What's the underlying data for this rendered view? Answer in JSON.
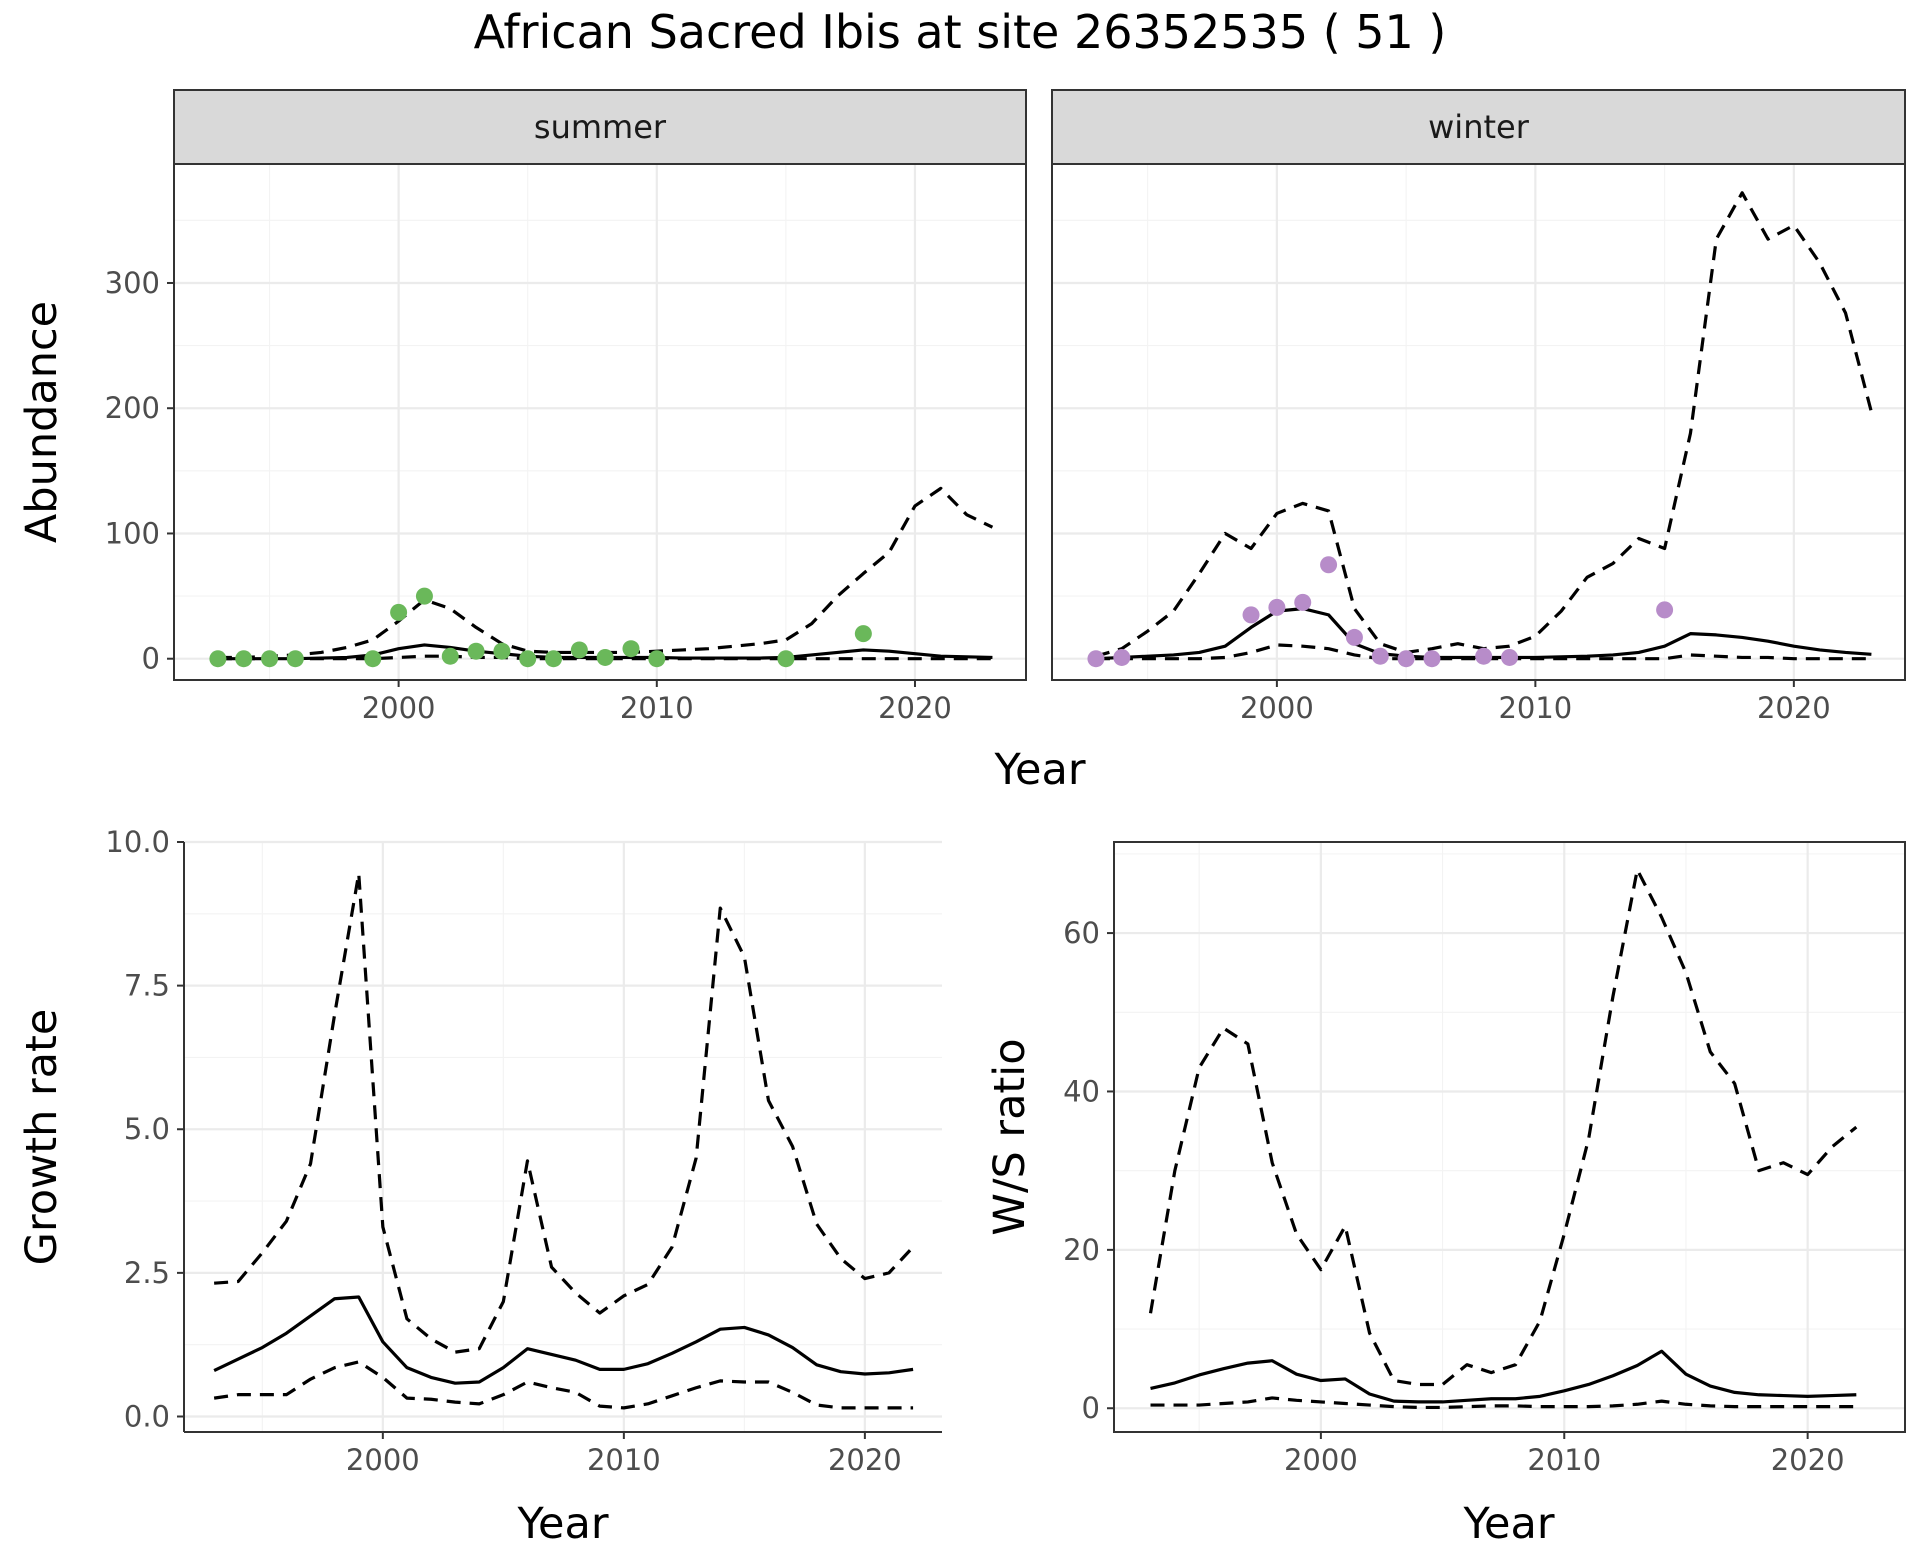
{
  "figure": {
    "title": "African Sacred Ibis at site 26352535 ( 51 )"
  },
  "colors": {
    "summer_points": "#6ab85a",
    "winter_points": "#b78cc9",
    "lines": "#000000",
    "strip_fill": "#d9d9d9"
  },
  "chart_data": [
    {
      "id": "abundance",
      "type": "line",
      "facets": [
        "summer",
        "winter"
      ],
      "xlabel": "Year",
      "ylabel": "Abundance",
      "xlim": [
        1991.3,
        2024.3
      ],
      "ylim": [
        -17,
        395
      ],
      "xticks": [
        2000,
        2010,
        2020
      ],
      "yticks": [
        0,
        100,
        200,
        300
      ],
      "panels": [
        {
          "name": "summer",
          "x": [
            1993,
            1994,
            1995,
            1996,
            1997,
            1998,
            1999,
            2000,
            2001,
            2002,
            2003,
            2004,
            2005,
            2006,
            2007,
            2008,
            2009,
            2010,
            2011,
            2012,
            2013,
            2014,
            2015,
            2016,
            2017,
            2018,
            2019,
            2020,
            2021,
            2022,
            2023
          ],
          "mean": [
            0,
            0,
            0,
            0,
            0.5,
            1,
            3,
            8,
            11,
            9,
            6,
            4,
            2,
            1,
            1,
            1,
            1,
            1,
            0.5,
            0.5,
            0.5,
            0.5,
            1,
            3,
            5,
            7,
            6,
            4,
            2,
            1.5,
            1
          ],
          "lower": [
            0,
            0,
            0,
            0,
            0,
            0,
            0,
            1,
            2,
            2,
            1,
            1,
            0,
            0,
            0,
            0,
            0,
            0,
            0,
            0,
            0,
            0,
            0,
            0,
            0,
            0,
            0,
            0,
            0,
            0,
            0
          ],
          "upper": [
            1,
            1,
            2,
            3,
            5,
            9,
            15,
            30,
            47,
            40,
            25,
            12,
            6,
            5,
            5,
            5,
            5,
            6,
            7,
            8,
            10,
            12,
            15,
            28,
            50,
            68,
            85,
            122,
            136,
            115,
            105
          ],
          "observed": {
            "x": [
              1993,
              1994,
              1995,
              1996,
              1999,
              2000,
              2001,
              2002,
              2003,
              2004,
              2005,
              2006,
              2007,
              2008,
              2009,
              2010,
              2015,
              2018
            ],
            "y": [
              0,
              0,
              0,
              0,
              0,
              37,
              50,
              2,
              6,
              6,
              0,
              0,
              7,
              1,
              8,
              0,
              0,
              20
            ]
          }
        },
        {
          "name": "winter",
          "x": [
            1993,
            1994,
            1995,
            1996,
            1997,
            1998,
            1999,
            2000,
            2001,
            2002,
            2003,
            2004,
            2005,
            2006,
            2007,
            2008,
            2009,
            2010,
            2011,
            2012,
            2013,
            2014,
            2015,
            2016,
            2017,
            2018,
            2019,
            2020,
            2021,
            2022,
            2023
          ],
          "mean": [
            0,
            1,
            2,
            3,
            5,
            10,
            25,
            38,
            40,
            35,
            12,
            4,
            2,
            1,
            1,
            1,
            1,
            1,
            1.5,
            2,
            3,
            5,
            10,
            20,
            19,
            17,
            14,
            10,
            7,
            5,
            3.5
          ],
          "lower": [
            0,
            0,
            0,
            0,
            0,
            1,
            5,
            11,
            10,
            8,
            3,
            0,
            0,
            0,
            0,
            0,
            0,
            0,
            0,
            0,
            0,
            0,
            0,
            3,
            2,
            1,
            1,
            0,
            0,
            0,
            0
          ],
          "upper": [
            2,
            8,
            22,
            38,
            68,
            100,
            88,
            116,
            124,
            118,
            40,
            12,
            5,
            8,
            12,
            8,
            10,
            18,
            38,
            65,
            76,
            96,
            88,
            180,
            335,
            372,
            335,
            346,
            316,
            276,
            197
          ],
          "observed": {
            "x": [
              1993,
              1994,
              1999,
              2000,
              2001,
              2002,
              2003,
              2004,
              2005,
              2006,
              2008,
              2009,
              2015
            ],
            "y": [
              0,
              1,
              35,
              41,
              45,
              75,
              17,
              2,
              0,
              0,
              2,
              1,
              39
            ]
          }
        }
      ]
    },
    {
      "id": "growth",
      "type": "line",
      "xlabel": "Year",
      "ylabel": "Growth rate",
      "xlim": [
        1991.75,
        2023.2
      ],
      "ylim": [
        -0.27,
        10.0
      ],
      "xticks": [
        2000,
        2010,
        2020
      ],
      "yticks": [
        0.0,
        2.5,
        5.0,
        7.5,
        10.0
      ],
      "ytick_labels": [
        "0.0",
        "2.5",
        "5.0",
        "7.5",
        "10.0"
      ],
      "x": [
        1993,
        1994,
        1995,
        1996,
        1997,
        1998,
        1999,
        2000,
        2001,
        2002,
        2003,
        2004,
        2005,
        2006,
        2007,
        2008,
        2009,
        2010,
        2011,
        2012,
        2013,
        2014,
        2015,
        2016,
        2017,
        2018,
        2019,
        2020,
        2021,
        2022
      ],
      "mean": [
        0.8,
        1.0,
        1.2,
        1.45,
        1.75,
        2.05,
        2.08,
        1.3,
        0.85,
        0.68,
        0.58,
        0.6,
        0.85,
        1.18,
        1.08,
        0.98,
        0.82,
        0.82,
        0.92,
        1.1,
        1.3,
        1.52,
        1.55,
        1.42,
        1.2,
        0.9,
        0.78,
        0.74,
        0.76,
        0.82
      ],
      "lower": [
        0.32,
        0.38,
        0.38,
        0.38,
        0.65,
        0.85,
        0.95,
        0.68,
        0.32,
        0.3,
        0.25,
        0.22,
        0.38,
        0.6,
        0.5,
        0.42,
        0.18,
        0.15,
        0.22,
        0.36,
        0.5,
        0.62,
        0.6,
        0.6,
        0.42,
        0.2,
        0.15,
        0.15,
        0.15,
        0.15
      ],
      "upper": [
        2.32,
        2.35,
        2.85,
        3.4,
        4.4,
        7.0,
        9.45,
        3.3,
        1.7,
        1.35,
        1.12,
        1.18,
        2.0,
        4.45,
        2.6,
        2.15,
        1.8,
        2.1,
        2.3,
        2.95,
        4.5,
        8.85,
        8.0,
        5.5,
        4.7,
        3.35,
        2.75,
        2.4,
        2.5,
        2.95
      ]
    },
    {
      "id": "ws_ratio",
      "type": "line",
      "xlabel": "Year",
      "ylabel": "W/S ratio",
      "xlim": [
        1991.5,
        2024.0
      ],
      "ylim": [
        -3.0,
        71.5
      ],
      "xticks": [
        2000,
        2010,
        2020
      ],
      "yticks": [
        0,
        20,
        40,
        60
      ],
      "x": [
        1993,
        1994,
        1995,
        1996,
        1997,
        1998,
        1999,
        2000,
        2001,
        2002,
        2003,
        2004,
        2005,
        2006,
        2007,
        2008,
        2009,
        2010,
        2011,
        2012,
        2013,
        2014,
        2015,
        2016,
        2017,
        2018,
        2019,
        2020,
        2021,
        2022
      ],
      "mean": [
        2.5,
        3.2,
        4.2,
        5.0,
        5.7,
        6.0,
        4.3,
        3.5,
        3.7,
        1.8,
        0.9,
        0.8,
        0.8,
        1.0,
        1.2,
        1.2,
        1.5,
        2.2,
        3.0,
        4.1,
        5.4,
        7.2,
        4.3,
        2.8,
        2.0,
        1.7,
        1.6,
        1.5,
        1.6,
        1.7
      ],
      "lower": [
        0.4,
        0.4,
        0.4,
        0.6,
        0.8,
        1.3,
        1.0,
        0.8,
        0.6,
        0.4,
        0.2,
        0.1,
        0.1,
        0.2,
        0.3,
        0.3,
        0.2,
        0.2,
        0.2,
        0.3,
        0.5,
        0.9,
        0.5,
        0.3,
        0.2,
        0.2,
        0.2,
        0.2,
        0.2,
        0.2
      ],
      "upper": [
        12,
        30,
        43,
        48,
        46,
        31,
        22,
        17.5,
        23,
        9.5,
        3.5,
        3,
        3,
        5.5,
        4.5,
        5.5,
        11,
        22,
        34,
        52,
        68,
        62,
        55,
        45,
        41,
        30,
        31,
        29.5,
        33,
        35.5
      ]
    }
  ]
}
